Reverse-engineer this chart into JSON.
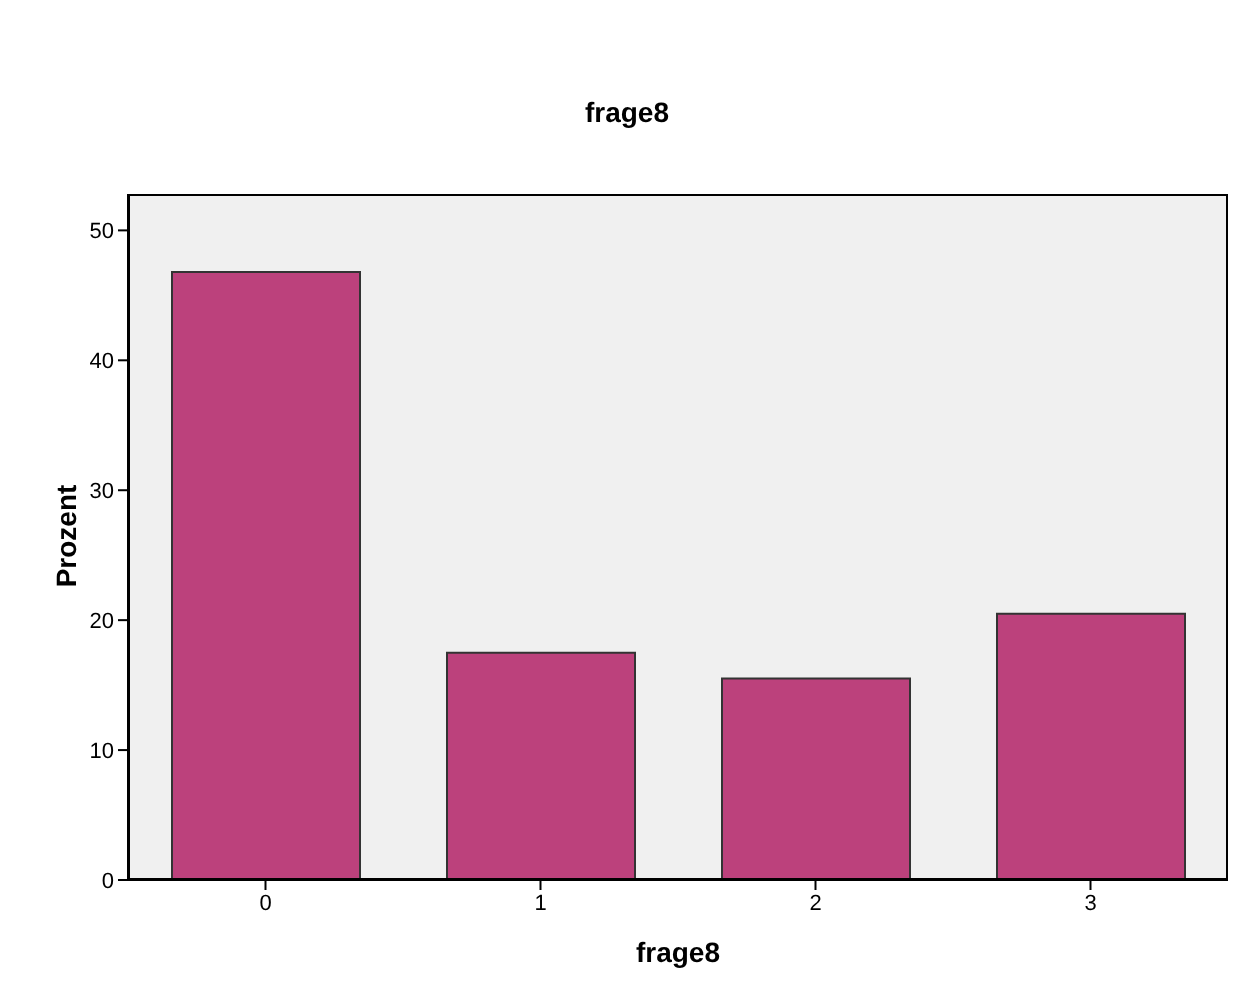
{
  "chart_data": {
    "type": "bar",
    "title": "frage8",
    "xlabel": "frage8",
    "ylabel": "Prozent",
    "categories": [
      "0",
      "1",
      "2",
      "3"
    ],
    "values": [
      46.8,
      17.5,
      15.5,
      20.5
    ],
    "color": "#bc417c",
    "ylim": [
      0,
      52.8
    ],
    "yticks": [
      0,
      10,
      20,
      30,
      40,
      50
    ],
    "grid": false
  }
}
